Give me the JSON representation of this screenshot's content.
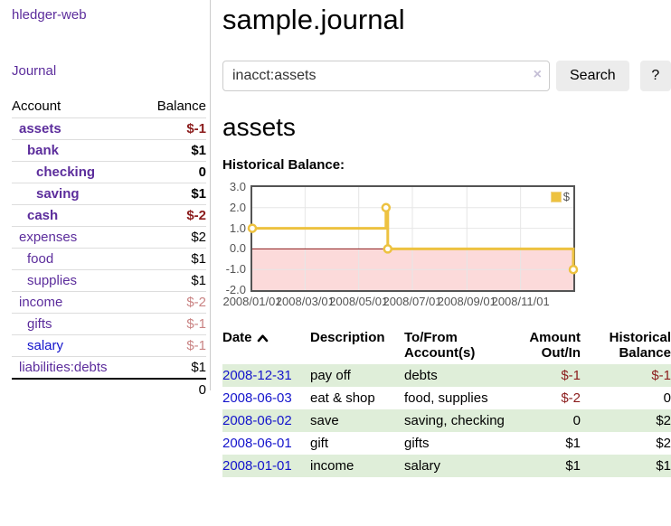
{
  "sidebar": {
    "title": "hledger-web",
    "nav_journal": "Journal",
    "table": {
      "headers": {
        "account": "Account",
        "balance": "Balance"
      },
      "total": "0"
    },
    "accounts": [
      {
        "name": "assets",
        "balance": "$-1",
        "depth": 1,
        "emph": true,
        "negative": "strong"
      },
      {
        "name": "bank",
        "balance": "$1",
        "depth": 2,
        "emph": true
      },
      {
        "name": "checking",
        "balance": "0",
        "depth": 3,
        "emph": true
      },
      {
        "name": "saving",
        "balance": "$1",
        "depth": 3,
        "emph": true
      },
      {
        "name": "cash",
        "balance": "$-2",
        "depth": 2,
        "emph": true,
        "negative": "strong"
      },
      {
        "name": "expenses",
        "balance": "$2",
        "depth": 1
      },
      {
        "name": "food",
        "balance": "$1",
        "depth": 2
      },
      {
        "name": "supplies",
        "balance": "$1",
        "depth": 2
      },
      {
        "name": "income",
        "balance": "$-2",
        "depth": 1,
        "negative": "soft"
      },
      {
        "name": "gifts",
        "balance": "$-1",
        "depth": 2,
        "negative": "soft"
      },
      {
        "name": "salary",
        "balance": "$-1",
        "depth": 2,
        "negative": "soft",
        "link": "blue"
      },
      {
        "name": "liabilities:debts",
        "balance": "$1",
        "depth": 1
      }
    ]
  },
  "main": {
    "title": "sample.journal",
    "search": {
      "value": "inacct:assets",
      "clear_icon": "×",
      "button": "Search",
      "help": "?"
    },
    "heading": "assets",
    "chart_label": "Historical Balance:",
    "register": {
      "headers": {
        "date": "Date",
        "description": "Description",
        "tofrom": "To/From Account(s)",
        "amount": "Amount Out/In",
        "balance": "Historical Balance"
      },
      "sort_icon": "chevron-up",
      "rows": [
        {
          "date": "2008-12-31",
          "description": "pay off",
          "accounts": "debts",
          "amount": "$-1",
          "balance": "$-1"
        },
        {
          "date": "2008-06-03",
          "description": "eat & shop",
          "accounts": "food, supplies",
          "amount": "$-2",
          "balance": "0"
        },
        {
          "date": "2008-06-02",
          "description": "save",
          "accounts": "saving, checking",
          "amount": "0",
          "balance": "$2"
        },
        {
          "date": "2008-06-01",
          "description": "gift",
          "accounts": "gifts",
          "amount": "$1",
          "balance": "$2"
        },
        {
          "date": "2008-01-01",
          "description": "income",
          "accounts": "salary",
          "amount": "$1",
          "balance": "$1"
        }
      ]
    }
  },
  "colors": {
    "link_purple": "#5c2d9c",
    "link_blue": "#1414cc",
    "negative_strong": "#8b1c1c",
    "negative_soft": "#c98383",
    "row_green": "#dfeed9",
    "chart_line": "#edc240",
    "chart_negative_fill": "#fcdada",
    "chart_zero_line": "#8b1a1a"
  },
  "chart_data": {
    "type": "line",
    "title": "Historical Balance:",
    "step": true,
    "xlim": [
      "2008-01-01",
      "2008-12-31"
    ],
    "ylim": [
      -2,
      3
    ],
    "y_ticks": [
      "3.0",
      "2.0",
      "1.0",
      "0.0",
      "-1.0",
      "-2.0"
    ],
    "x_ticks": [
      "2008/01/01",
      "2008/03/01",
      "2008/05/01",
      "2008/07/01",
      "2008/09/01",
      "2008/11/01"
    ],
    "series": [
      {
        "name": "$",
        "points": [
          [
            "2008-01-01",
            1
          ],
          [
            "2008-06-01",
            2
          ],
          [
            "2008-06-03",
            0
          ],
          [
            "2008-12-31",
            -1
          ]
        ]
      }
    ],
    "legend_position": "top-right",
    "grid": true,
    "colors": {
      "line": "#edc240",
      "negative_fill": "#fcdada",
      "zero_line": "#8b1a1a"
    }
  }
}
